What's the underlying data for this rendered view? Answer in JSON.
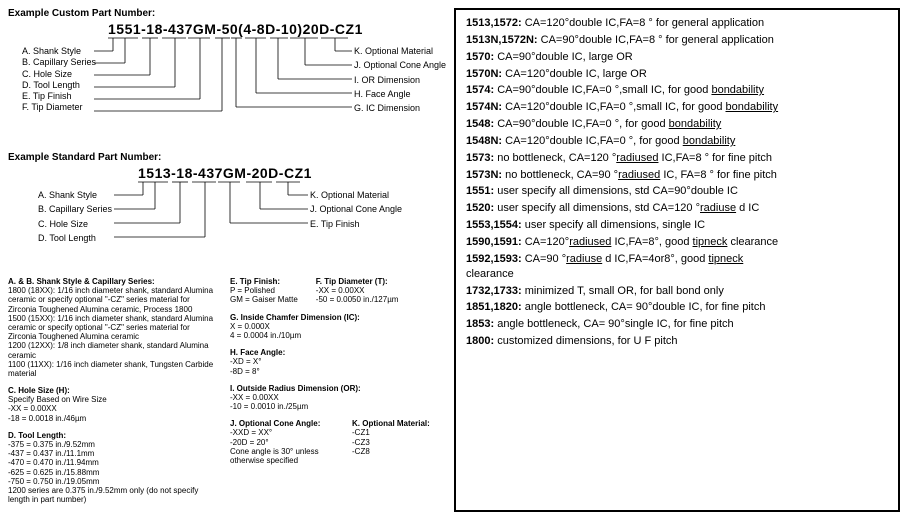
{
  "custom": {
    "title": "Example Custom Part Number:",
    "pn": "1551-18-437GM-50(4-8D-10)20D-CZ1",
    "left": [
      "A. Shank Style",
      "B. Capillary Series",
      "C. Hole Size",
      "D. Tool Length",
      "E. Tip Finish",
      "F. Tip Diameter"
    ],
    "right": [
      "K. Optional Material",
      "J. Optional Cone Angle",
      "I. OR Dimension",
      "H. Face Angle",
      "G. IC Dimension"
    ]
  },
  "standard": {
    "title": "Example Standard Part Number:",
    "pn": "1513-18-437GM-20D-CZ1",
    "left": [
      "A. Shank Style",
      "B. Capillary Series",
      "C. Hole Size",
      "D. Tool Length"
    ],
    "right": [
      "K. Optional Material",
      "J. Optional Cone Angle",
      "E. Tip Finish"
    ]
  },
  "legend": {
    "ab_title": "A. & B. Shank Style & Capillary Series:",
    "ab": [
      "1800 (18XX): 1/16 inch diameter shank, standard Alumina ceramic or specify optional \"-CZ\" series material for Zirconia Toughened Alumina ceramic, Process 1800",
      "1500 (15XX): 1/16 inch diameter shank, standard Alumina ceramic or specify optional \"-CZ\" series material for Zirconia Toughened Alumina ceramic",
      "1200 (12XX): 1/8 inch diameter shank, standard Alumina ceramic",
      "1100 (11XX): 1/16 inch diameter shank, Tungsten Carbide material"
    ],
    "c_title": "C. Hole Size (H):",
    "c": [
      "Specify Based on Wire Size",
      "-XX = 0.00XX",
      "-18 = 0.0018 in./46µm"
    ],
    "d_title": "D. Tool Length:",
    "d": [
      "-375 = 0.375 in./9.52mm",
      "-437 = 0.437 in./11.1mm",
      "-470 = 0.470 in./11.94mm",
      "-625 = 0.625 in./15.88mm",
      "-750 = 0.750 in./19.05mm",
      "1200 series are 0.375 in./9.52mm only (do not specify length in part number)"
    ],
    "e_title": "E. Tip Finish:",
    "e": [
      "P = Polished",
      "GM = Gaiser Matte"
    ],
    "f_title": "F. Tip Diameter (T):",
    "f": [
      "-XX = 0.00XX",
      "-50 = 0.0050 in./127µm"
    ],
    "g_title": "G. Inside Chamfer Dimension (IC):",
    "g": [
      "X = 0.000X",
      "4 = 0.0004 in./10µm"
    ],
    "h_title": "H. Face Angle:",
    "h": [
      "-XD = X°",
      "-8D = 8°"
    ],
    "i_title": "I. Outside Radius Dimension (OR):",
    "i": [
      "-XX = 0.00XX",
      "-10 = 0.0010 in./25µm"
    ],
    "j_title": "J. Optional Cone Angle:",
    "j": [
      "-XXD = XX°",
      "-20D = 20°",
      "Cone angle is 30° unless otherwise specified"
    ],
    "k_title": "K. Optional Material:",
    "k": [
      "-CZ1",
      "-CZ3",
      "-CZ8"
    ]
  },
  "series": [
    {
      "code": "1513,1572:",
      "plain": " CA=120°double IC,FA=8 ° for general application"
    },
    {
      "code": "1513N,1572N:",
      "plain": " CA=90°double IC,FA=8 ° for general application"
    },
    {
      "code": "1570:",
      "plain": " CA=90°double IC, large OR"
    },
    {
      "code": "1570N:",
      "plain": " CA=120°double IC, large OR"
    },
    {
      "code": "1574:",
      "pre": " CA=90°double IC,FA=0 °,small IC, for good ",
      "u": "bondability"
    },
    {
      "code": "1574N:",
      "pre": " CA=120°double IC,FA=0 °,small IC, for good ",
      "u": "bondability"
    },
    {
      "code": "1548:",
      "pre": " CA=90°double IC,FA=0 °, for good ",
      "u": "bondability"
    },
    {
      "code": "1548N:",
      "pre": " CA=120°double IC,FA=0 °, for good ",
      "u": "bondability"
    },
    {
      "code": "1573:",
      "pre": " no bottleneck, CA=120 °",
      "u": "radiused",
      "post": " IC,FA=8 ° for fine pitch"
    },
    {
      "code": "1573N:",
      "pre": " no bottleneck, CA=90 °",
      "u": "radiused",
      "post": " IC, FA=8 ° for fine pitch"
    },
    {
      "code": "1551:",
      "plain": " user specify all dimensions, std  CA=90°double IC"
    },
    {
      "code": "1520:",
      "pre": " user specify all dimensions, std  CA=120 °",
      "u": "radiuse",
      "post": " d IC"
    },
    {
      "code": "1553,1554:",
      "plain": " user specify all dimensions, single IC"
    },
    {
      "code": "1590,1591:",
      "pre": " CA=120°",
      "u": "radiused",
      "post": " IC,FA=8°, good ",
      "u2": "tipneck",
      "post2": " clearance"
    },
    {
      "code": "1592,1593:",
      "pre": " CA=90 °",
      "u": "radiuse",
      "post": " d IC,FA=4or8°, good ",
      "u2": "tipneck",
      "post2": " clearance",
      "wrap": true
    },
    {
      "code": "1732,1733:",
      "plain": " minimized T, small OR, for ball bond only"
    },
    {
      "code": "1851,1820:",
      "plain": " angle bottleneck, CA=  90°double IC, for fine pitch"
    },
    {
      "code": "1853:",
      "plain": " angle bottleneck, CA=  90°single IC, for fine pitch"
    },
    {
      "code": "1800:",
      "plain": " customized dimensions, for U F pitch"
    }
  ]
}
